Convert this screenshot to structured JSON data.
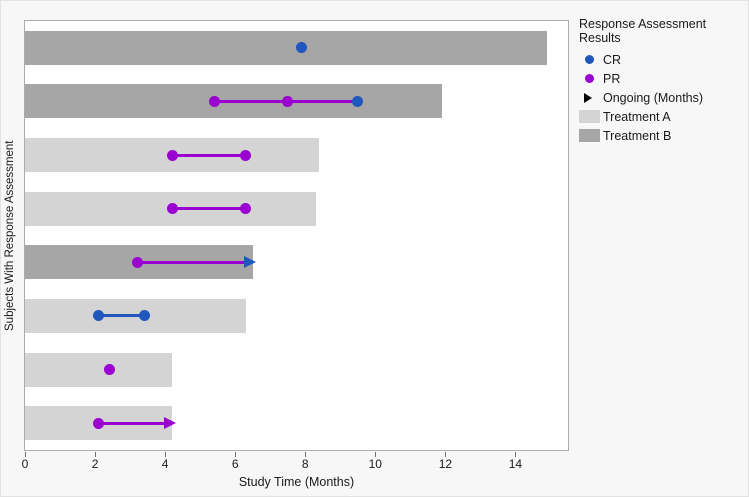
{
  "chart_data": {
    "type": "bar",
    "variant": "swimmer-plot",
    "title": "",
    "xlabel": "Study Time (Months)",
    "ylabel": "Subjects With Response Assessment",
    "xlim": [
      0,
      15.5
    ],
    "xticks": [
      0,
      2,
      4,
      6,
      8,
      10,
      12,
      14
    ],
    "xtick_labels": [
      "0",
      "2",
      "4",
      "6",
      "8",
      "10",
      "12",
      "14"
    ],
    "grid": false,
    "legend": {
      "title": "Response Assessment Results",
      "position": "right",
      "items": [
        {
          "label": "CR",
          "icon": "circle",
          "color_key": "cr"
        },
        {
          "label": "PR",
          "icon": "circle",
          "color_key": "pr"
        },
        {
          "label": "Ongoing (Months)",
          "icon": "triangle-right",
          "color_key": "ongoing"
        },
        {
          "label": "Treatment A",
          "icon": "swatch",
          "color_key": "treatment_a"
        },
        {
          "label": "Treatment B",
          "icon": "swatch",
          "color_key": "treatment_b"
        }
      ]
    },
    "colors": {
      "cr": "#2057bd",
      "pr": "#9a00d0",
      "ongoing": "#000000",
      "treatment_a": "#d4d4d4",
      "treatment_b": "#a6a6a6",
      "plot_border": "#ababab",
      "axis": "#6e6e6e",
      "text": "#1a1a1a",
      "figure_bg": "#f7f7f7"
    },
    "subjects": [
      {
        "treatment": "B",
        "bar_end": 14.9,
        "markers": [
          {
            "type": "CR",
            "x": 7.9
          }
        ]
      },
      {
        "treatment": "B",
        "bar_end": 11.9,
        "segments": [
          {
            "from": 5.4,
            "to": 9.5,
            "color_key": "pr"
          }
        ],
        "markers": [
          {
            "type": "PR",
            "x": 5.4
          },
          {
            "type": "PR",
            "x": 7.5
          },
          {
            "type": "CR",
            "x": 9.5
          }
        ]
      },
      {
        "treatment": "A",
        "bar_end": 8.4,
        "segments": [
          {
            "from": 4.2,
            "to": 6.3,
            "color_key": "pr"
          }
        ],
        "markers": [
          {
            "type": "PR",
            "x": 4.2
          },
          {
            "type": "PR",
            "x": 6.3
          }
        ]
      },
      {
        "treatment": "A",
        "bar_end": 8.3,
        "segments": [
          {
            "from": 4.2,
            "to": 6.3,
            "color_key": "pr"
          }
        ],
        "markers": [
          {
            "type": "PR",
            "x": 4.2
          },
          {
            "type": "PR",
            "x": 6.3
          }
        ]
      },
      {
        "treatment": "B",
        "bar_end": 6.5,
        "arrow": {
          "from": 3.2,
          "to": 6.6,
          "line_color_key": "pr",
          "head_color_key": "cr"
        },
        "markers": [
          {
            "type": "PR",
            "x": 3.2
          }
        ]
      },
      {
        "treatment": "A",
        "bar_end": 6.3,
        "segments": [
          {
            "from": 2.1,
            "to": 3.4,
            "color_key": "cr"
          }
        ],
        "markers": [
          {
            "type": "CR",
            "x": 2.1
          },
          {
            "type": "CR",
            "x": 3.4
          }
        ]
      },
      {
        "treatment": "A",
        "bar_end": 4.2,
        "markers": [
          {
            "type": "PR",
            "x": 2.4
          }
        ]
      },
      {
        "treatment": "A",
        "bar_end": 4.2,
        "arrow": {
          "from": 2.1,
          "to": 4.3,
          "line_color_key": "pr",
          "head_color_key": "pr"
        },
        "markers": [
          {
            "type": "PR",
            "x": 2.1
          }
        ]
      }
    ]
  }
}
